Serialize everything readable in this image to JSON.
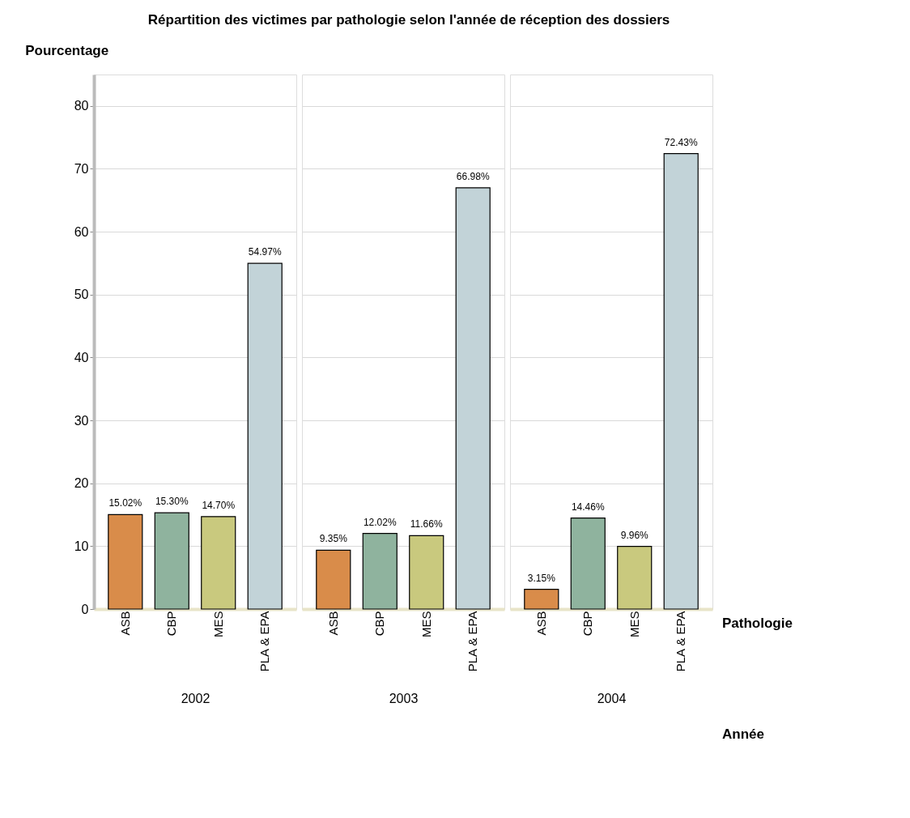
{
  "chart_data": [
    {
      "type": "bar",
      "title": "Répartition des victimes par pathologie selon l'année de réception des dossiers",
      "ylabel": "Pourcentage",
      "xlabel": "2002",
      "categories": [
        "ASB",
        "CBP",
        "MES",
        "PLA & EPA"
      ],
      "values": [
        15.02,
        15.3,
        14.7,
        54.97
      ],
      "value_labels": [
        "15.02%",
        "15.30%",
        "14.70%",
        "54.97%"
      ],
      "colors": [
        "#d98c4a",
        "#8fb39e",
        "#c9c97e",
        "#c2d3d8"
      ],
      "ylim": [
        0,
        85
      ],
      "yticks": [
        0,
        10,
        20,
        30,
        40,
        50,
        60,
        70,
        80
      ],
      "grid": "y"
    },
    {
      "type": "bar",
      "xlabel": "2003",
      "categories": [
        "ASB",
        "CBP",
        "MES",
        "PLA & EPA"
      ],
      "values": [
        9.35,
        12.02,
        11.66,
        66.98
      ],
      "value_labels": [
        "9.35%",
        "12.02%",
        "11.66%",
        "66.98%"
      ],
      "colors": [
        "#d98c4a",
        "#8fb39e",
        "#c9c97e",
        "#c2d3d8"
      ],
      "ylim": [
        0,
        85
      ],
      "yticks": [
        0,
        10,
        20,
        30,
        40,
        50,
        60,
        70,
        80
      ],
      "grid": "y",
      "tick_labels": "x"
    },
    {
      "type": "bar",
      "xlabel": "2004",
      "categories": [
        "ASB",
        "CBP",
        "MES",
        "PLA & EPA"
      ],
      "values": [
        3.15,
        14.46,
        9.96,
        72.43
      ],
      "value_labels": [
        "3.15%",
        "14.46%",
        "9.96%",
        "72.43%"
      ],
      "colors": [
        "#d98c4a",
        "#8fb39e",
        "#c9c97e",
        "#c2d3d8"
      ],
      "ylim": [
        0,
        85
      ],
      "yticks": [
        0,
        10,
        20,
        30,
        40,
        50,
        60,
        70,
        80
      ],
      "grid": "y",
      "tick_labels": "x",
      "annotations": [
        "Pathologie",
        "Année"
      ]
    }
  ]
}
